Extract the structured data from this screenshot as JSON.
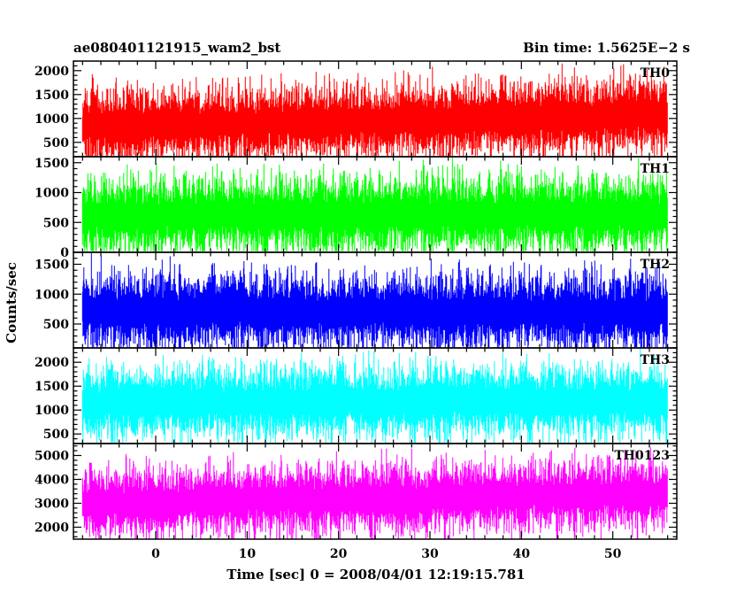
{
  "header": {
    "title": "ae080401121915_wam2_bst",
    "bin_time": "Bin time: 1.5625E−2 s"
  },
  "chart_data": {
    "type": "line",
    "title": "ae080401121915_wam2_bst",
    "xlabel": "Time [sec] 0 = 2008/04/01 12:19:15.781",
    "ylabel": "Counts/sec",
    "xlim": [
      -9,
      57
    ],
    "xticks": [
      0,
      10,
      20,
      30,
      40,
      50
    ],
    "xtick_labels": [
      "0",
      "10",
      "20",
      "30",
      "40",
      "50"
    ],
    "data_range": [
      -8,
      56
    ],
    "panels": [
      {
        "name": "TH0",
        "color": "#ff0000",
        "ylim": [
          200,
          2200
        ],
        "yticks": [
          500,
          1000,
          1500,
          2000
        ],
        "ytick_labels": [
          "500",
          "1000",
          "1500",
          "2000"
        ],
        "base_start": 820,
        "base_end": 1080,
        "spread": 330,
        "min": 200,
        "max": 2200
      },
      {
        "name": "TH1",
        "color": "#00ff00",
        "ylim": [
          0,
          1600
        ],
        "yticks": [
          0,
          500,
          1000,
          1500
        ],
        "ytick_labels": [
          "0",
          "500",
          "1000",
          "1500"
        ],
        "base_start": 620,
        "base_end": 640,
        "spread": 280,
        "min": 20,
        "max": 1600
      },
      {
        "name": "TH2",
        "color": "#0000ff",
        "ylim": [
          100,
          1700
        ],
        "yticks": [
          500,
          1000,
          1500
        ],
        "ytick_labels": [
          "500",
          "1000",
          "1500"
        ],
        "base_start": 720,
        "base_end": 700,
        "spread": 280,
        "min": 100,
        "max": 1700
      },
      {
        "name": "TH3",
        "color": "#00ffff",
        "ylim": [
          300,
          2300
        ],
        "yticks": [
          500,
          1000,
          1500,
          2000
        ],
        "ytick_labels": [
          "500",
          "1000",
          "1500",
          "2000"
        ],
        "base_start": 1150,
        "base_end": 1200,
        "spread": 330,
        "min": 300,
        "max": 2300
      },
      {
        "name": "TH0123",
        "color": "#ff00ff",
        "ylim": [
          1500,
          5500
        ],
        "yticks": [
          2000,
          3000,
          4000,
          5000
        ],
        "ytick_labels": [
          "2000",
          "3000",
          "4000",
          "5000"
        ],
        "base_start": 3000,
        "base_end": 3400,
        "spread": 620,
        "min": 1500,
        "max": 5500
      }
    ]
  }
}
